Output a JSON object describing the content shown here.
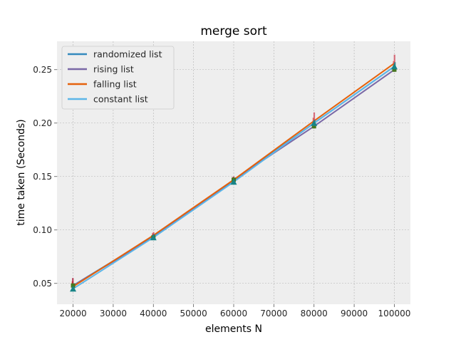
{
  "chart_data": {
    "type": "line",
    "title": "merge sort",
    "xlabel": "elements N",
    "ylabel": "time taken (Seconds)",
    "xlim": [
      16000,
      104000
    ],
    "ylim": [
      0.0305,
      0.2765
    ],
    "x": [
      20000,
      40000,
      60000,
      80000,
      100000
    ],
    "xticks": [
      20000,
      30000,
      40000,
      50000,
      60000,
      70000,
      80000,
      90000,
      100000
    ],
    "yticks": [
      0.05,
      0.1,
      0.15,
      0.2,
      0.25
    ],
    "ytick_labels": [
      "0.05",
      "0.10",
      "0.15",
      "0.20",
      "0.25"
    ],
    "grid": true,
    "legend_position": "top-left",
    "series": [
      {
        "name": "randomized list",
        "color": "#348ABD",
        "values": [
          0.048,
          0.094,
          0.146,
          0.2,
          0.253
        ],
        "err_low": [
          0.046,
          0.093,
          0.144,
          0.197,
          0.25
        ],
        "err_high": [
          0.052,
          0.097,
          0.149,
          0.205,
          0.258
        ],
        "err_color": "#E24A33"
      },
      {
        "name": "rising list",
        "color": "#7A68A6",
        "values": [
          0.048,
          0.093,
          0.147,
          0.197,
          0.25
        ],
        "err_low": [
          0.046,
          0.092,
          0.145,
          0.195,
          0.248
        ],
        "err_high": [
          0.055,
          0.096,
          0.15,
          0.2,
          0.254
        ],
        "err_color": "#A60628"
      },
      {
        "name": "falling list",
        "color": "#E5620C",
        "values": [
          0.047,
          0.095,
          0.147,
          0.202,
          0.256
        ],
        "err_low": [
          0.045,
          0.094,
          0.145,
          0.199,
          0.252
        ],
        "err_high": [
          0.05,
          0.098,
          0.149,
          0.21,
          0.264
        ],
        "err_color": "#CF4457"
      },
      {
        "name": "constant list",
        "color": "#5DB6E8",
        "values": [
          0.045,
          0.093,
          0.145,
          0.2,
          0.253
        ],
        "err_low": [
          0.043,
          0.092,
          0.143,
          0.197,
          0.249
        ],
        "err_high": [
          0.047,
          0.096,
          0.147,
          0.203,
          0.257
        ],
        "err_color": "#188487"
      }
    ]
  }
}
